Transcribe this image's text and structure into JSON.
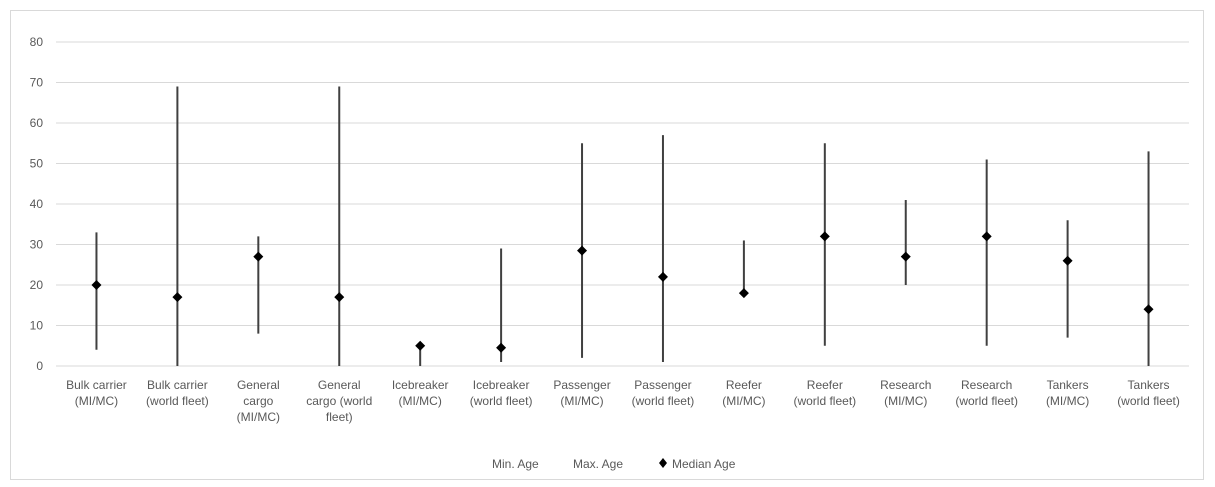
{
  "chart_data": {
    "type": "scatter",
    "title": "",
    "xlabel": "",
    "ylabel": "",
    "ylim": [
      0,
      80
    ],
    "yticks": [
      0,
      10,
      20,
      30,
      40,
      50,
      60,
      70,
      80
    ],
    "grid": true,
    "legend_position": "bottom",
    "categories": [
      "Bulk carrier (MI/MC)",
      "Bulk carrier (world fleet)",
      "General cargo (MI/MC)",
      "General cargo (world fleet)",
      "Icebreaker (MI/MC)",
      "Icebreaker (world fleet)",
      "Passenger (MI/MC)",
      "Passenger (world fleet)",
      "Reefer (MI/MC)",
      "Reefer (world fleet)",
      "Research (MI/MC)",
      "Research (world fleet)",
      "Tankers (MI/MC)",
      "Tankers (world fleet)"
    ],
    "category_label_lines": [
      [
        "Bulk carrier",
        "(MI/MC)"
      ],
      [
        "Bulk carrier",
        "(world fleet)"
      ],
      [
        "General",
        "cargo",
        "(MI/MC)"
      ],
      [
        "General",
        "cargo (world",
        "fleet)"
      ],
      [
        "Icebreaker",
        "(MI/MC)"
      ],
      [
        "Icebreaker",
        "(world fleet)"
      ],
      [
        "Passenger",
        "(MI/MC)"
      ],
      [
        "Passenger",
        "(world fleet)"
      ],
      [
        "Reefer",
        "(MI/MC)"
      ],
      [
        "Reefer",
        "(world fleet)"
      ],
      [
        "Research",
        "(MI/MC)"
      ],
      [
        "Research",
        "(world fleet)"
      ],
      [
        "Tankers",
        "(MI/MC)"
      ],
      [
        "Tankers",
        "(world fleet)"
      ]
    ],
    "series": [
      {
        "name": "Min. Age",
        "values": [
          4,
          0,
          8,
          0,
          0,
          1,
          2,
          1,
          18,
          5,
          20,
          5,
          7,
          0
        ]
      },
      {
        "name": "Max. Age",
        "values": [
          33,
          69,
          32,
          69,
          5,
          29,
          55,
          57,
          31,
          55,
          41,
          51,
          36,
          53
        ]
      },
      {
        "name": "Median Age",
        "values": [
          20,
          17,
          27,
          17,
          5,
          4.5,
          28.5,
          22,
          18,
          32,
          27,
          32,
          26,
          14
        ]
      }
    ],
    "colors": {
      "range_line": "#404040",
      "marker": "#000000",
      "grid": "#d9d9d9",
      "text": "#595959"
    }
  }
}
